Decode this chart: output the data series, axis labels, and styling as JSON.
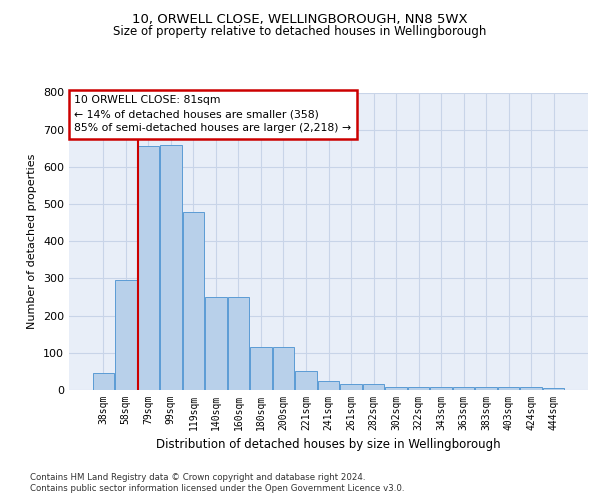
{
  "title1": "10, ORWELL CLOSE, WELLINGBOROUGH, NN8 5WX",
  "title2": "Size of property relative to detached houses in Wellingborough",
  "xlabel": "Distribution of detached houses by size in Wellingborough",
  "ylabel": "Number of detached properties",
  "footer1": "Contains HM Land Registry data © Crown copyright and database right 2024.",
  "footer2": "Contains public sector information licensed under the Open Government Licence v3.0.",
  "annotation_title": "10 ORWELL CLOSE: 81sqm",
  "annotation_line1": "← 14% of detached houses are smaller (358)",
  "annotation_line2": "85% of semi-detached houses are larger (2,218) →",
  "bar_values": [
    45,
    295,
    655,
    660,
    480,
    250,
    250,
    115,
    115,
    50,
    25,
    15,
    15,
    8,
    8,
    8,
    8,
    8,
    8,
    8,
    5
  ],
  "categories": [
    "38sqm",
    "58sqm",
    "79sqm",
    "99sqm",
    "119sqm",
    "140sqm",
    "160sqm",
    "180sqm",
    "200sqm",
    "221sqm",
    "241sqm",
    "261sqm",
    "282sqm",
    "302sqm",
    "322sqm",
    "343sqm",
    "363sqm",
    "383sqm",
    "403sqm",
    "424sqm",
    "444sqm"
  ],
  "bar_color": "#b8d0ea",
  "bar_edge_color": "#5b9bd5",
  "grid_color": "#c8d4e8",
  "vline_color": "#cc0000",
  "annotation_box_color": "#cc0000",
  "ylim": [
    0,
    800
  ],
  "yticks": [
    0,
    100,
    200,
    300,
    400,
    500,
    600,
    700,
    800
  ],
  "background_color": "#e8eef8",
  "fig_bg": "#ffffff"
}
